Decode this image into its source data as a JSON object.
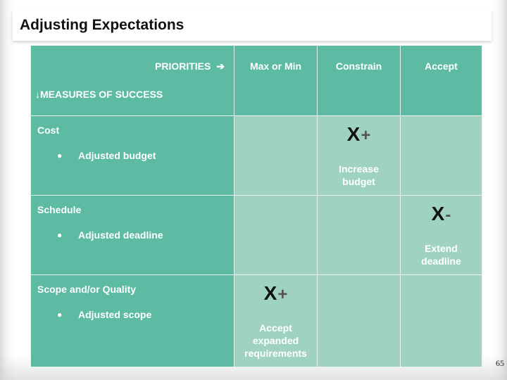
{
  "slide": {
    "title": "Adjusting Expectations",
    "page_number": "65"
  },
  "matrix": {
    "priorities_label": "PRIORITIES",
    "arrow_right": "➔",
    "measures_arrow": "↓",
    "measures_label": "MEASURES OF SUCCESS",
    "columns": [
      "Max or Min",
      "Constrain",
      "Accept"
    ],
    "rows": [
      {
        "title": "Cost",
        "bullet": "Adjusted budget",
        "mark": "X",
        "sign": "+",
        "note_lines": [
          "Increase",
          "budget"
        ],
        "column": "Constrain"
      },
      {
        "title": "Schedule",
        "bullet": "Adjusted deadline",
        "mark": "X",
        "sign": "-",
        "note_lines": [
          "Extend",
          "deadline"
        ],
        "column": "Accept"
      },
      {
        "title": "Scope and/or Quality",
        "bullet": "Adjusted scope",
        "mark": "X",
        "sign": "+",
        "note_lines": [
          "Accept",
          "expanded",
          "requirements"
        ],
        "column": "Max or Min"
      }
    ],
    "bullet_glyph": "●",
    "colors": {
      "header_green": "#5dbba3",
      "cell_green": "#9fd3bf",
      "text_white": "#ffffff",
      "mark_black": "#111111"
    }
  }
}
